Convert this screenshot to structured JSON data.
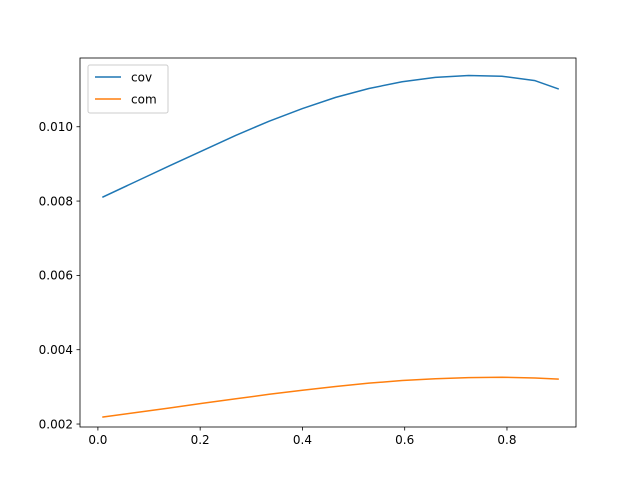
{
  "chart_data": {
    "type": "line",
    "title": "",
    "xlabel": "",
    "ylabel": "",
    "xlim": [
      -0.035,
      0.935
    ],
    "ylim": [
      0.00192,
      0.01185
    ],
    "xticks": [
      0.0,
      0.2,
      0.4,
      0.6,
      0.8
    ],
    "xtick_labels": [
      "0.0",
      "0.2",
      "0.4",
      "0.6",
      "0.8"
    ],
    "yticks": [
      0.002,
      0.004,
      0.006,
      0.008,
      0.01
    ],
    "ytick_labels": [
      "0.002",
      "0.004",
      "0.006",
      "0.008",
      "0.010"
    ],
    "grid": false,
    "legend": "top-left",
    "series": [
      {
        "name": "cov",
        "color": "#1f77b4",
        "x": [
          0.01,
          0.075,
          0.14,
          0.205,
          0.27,
          0.335,
          0.4,
          0.465,
          0.53,
          0.595,
          0.66,
          0.725,
          0.79,
          0.855,
          0.9
        ],
        "y": [
          0.00811,
          0.00853,
          0.00895,
          0.00936,
          0.00977,
          0.01015,
          0.01049,
          0.01079,
          0.01103,
          0.01121,
          0.01133,
          0.01138,
          0.01136,
          0.01124,
          0.01102
        ]
      },
      {
        "name": "com",
        "color": "#ff7f0e",
        "x": [
          0.01,
          0.075,
          0.14,
          0.205,
          0.27,
          0.335,
          0.4,
          0.465,
          0.53,
          0.595,
          0.66,
          0.725,
          0.79,
          0.855,
          0.9
        ],
        "y": [
          0.00219,
          0.00231,
          0.00243,
          0.00256,
          0.00268,
          0.0028,
          0.00291,
          0.00301,
          0.0031,
          0.00317,
          0.00322,
          0.00325,
          0.00326,
          0.00324,
          0.00321
        ]
      }
    ]
  }
}
